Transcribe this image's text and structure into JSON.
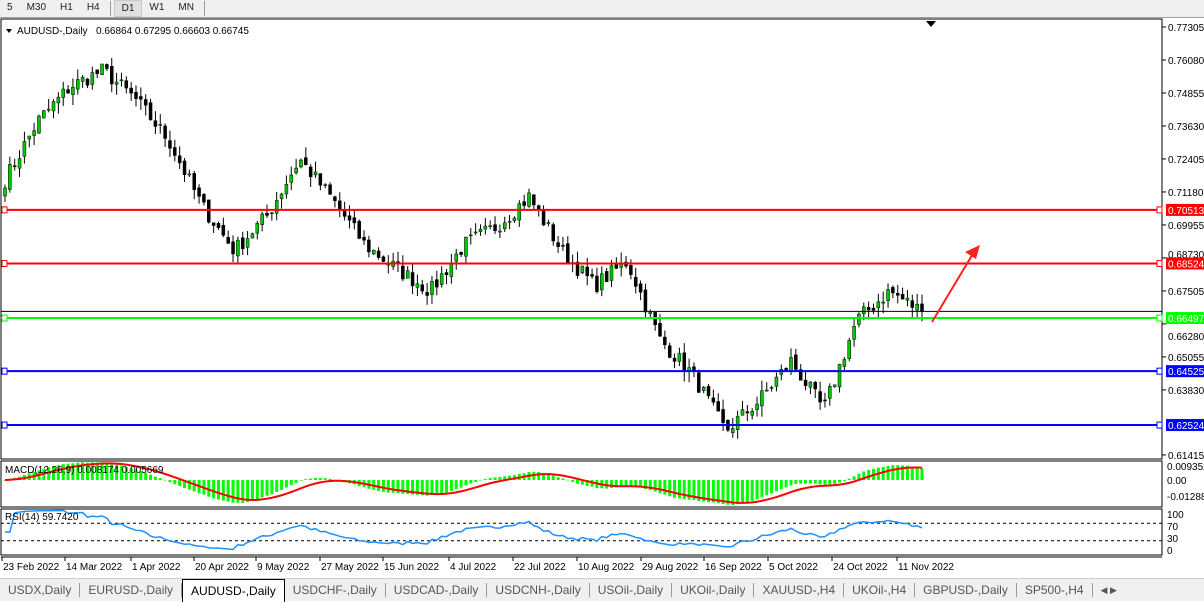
{
  "toolbar": {
    "timeframes": [
      "5",
      "M30",
      "H1",
      "H4",
      "D1",
      "W1",
      "MN"
    ],
    "active": "D1"
  },
  "header": {
    "symbol": "AUDUSD-,Daily",
    "ohlc": "0.66864 0.67295 0.66603 0.66745"
  },
  "price_axis": [
    "0.77305",
    "0.76080",
    "0.74855",
    "0.73630",
    "0.72405",
    "0.71180",
    "0.69955",
    "0.68730",
    "0.67505",
    "0.66280",
    "0.65055",
    "0.63830",
    "0.61415"
  ],
  "current_price": "0.66745",
  "levels": [
    {
      "price": 0.70513,
      "label": "0.70513",
      "color": "#ff0000"
    },
    {
      "price": 0.68524,
      "label": "0.68524",
      "color": "#ff0000"
    },
    {
      "price": 0.66497,
      "label": "0.66497",
      "color": "#00ff00"
    },
    {
      "price": 0.64525,
      "label": "0.64525",
      "color": "#0000ff"
    },
    {
      "price": 0.62524,
      "label": "0.62524",
      "color": "#0000ff"
    }
  ],
  "macd": {
    "label": "MACD(12,26,9) 0.008174 0.005669",
    "axis": [
      "0.009352",
      "0.00",
      "-0.01288"
    ]
  },
  "rsi": {
    "label": "RSI(14) 59.7420",
    "axis": [
      "100",
      "70",
      "30",
      "0"
    ]
  },
  "dates": [
    "23 Feb 2022",
    "14 Mar 2022",
    "1 Apr 2022",
    "20 Apr 2022",
    "9 May 2022",
    "27 May 2022",
    "15 Jun 2022",
    "4 Jul 2022",
    "22 Jul 2022",
    "10 Aug 2022",
    "29 Aug 2022",
    "16 Sep 2022",
    "5 Oct 2022",
    "24 Oct 2022",
    "11 Nov 2022"
  ],
  "colors": {
    "bull": "#00c800",
    "bear": "#000000",
    "macd_hist": "#00ff00",
    "macd_signal": "#ff0000",
    "rsi": "#1e90ff",
    "arrow": "#ff2020"
  },
  "chart_data": {
    "type": "candlestick",
    "price_path": [
      0.7163,
      0.738,
      0.751,
      0.757,
      0.746,
      0.731,
      0.707,
      0.69,
      0.703,
      0.724,
      0.709,
      0.692,
      0.683,
      0.675,
      0.692,
      0.699,
      0.71,
      0.69,
      0.677,
      0.686,
      0.657,
      0.644,
      0.623,
      0.634,
      0.649,
      0.631,
      0.664,
      0.675,
      0.6675
    ]
  },
  "tabs": [
    "USDX,Daily",
    "EURUSD-,Daily",
    "AUDUSD-,Daily",
    "USDCHF-,Daily",
    "USDCAD-,Daily",
    "USDCNH-,Daily",
    "USOil-,Daily",
    "UKOil-,Daily",
    "XAUUSD-,H4",
    "UKOil-,H4",
    "GBPUSD-,Daily",
    "SP500-,H4"
  ],
  "active_tab": "AUDUSD-,Daily"
}
